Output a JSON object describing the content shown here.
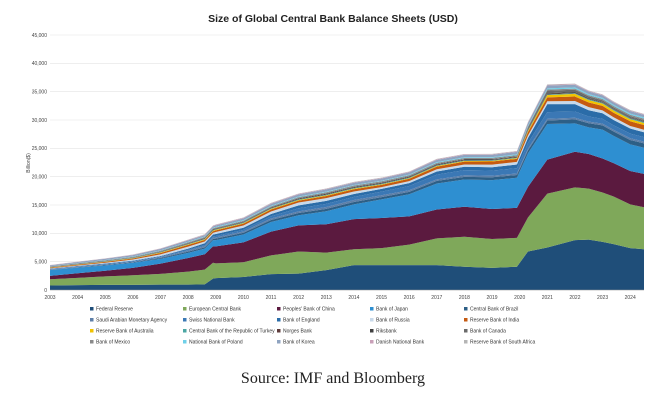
{
  "chart_data": {
    "type": "area",
    "stacked": true,
    "title": "Size of Global Central Bank Balance Sheets (USD)",
    "ylabel": "Billion($)",
    "ylim": [
      0,
      45000
    ],
    "yticks": [
      "0",
      "5,000",
      "10,000",
      "15,000",
      "20,000",
      "25,000",
      "30,000",
      "35,000",
      "40,000",
      "45,000"
    ],
    "xlim": [
      2003,
      2024.5
    ],
    "x_tick_labels": [
      "2003",
      "2004",
      "2005",
      "2006",
      "2007",
      "2008",
      "2009",
      "2010",
      "2011",
      "2012",
      "2013",
      "2014",
      "2015",
      "2016",
      "2017",
      "2018",
      "2019",
      "2020",
      "2021",
      "2022",
      "2023",
      "2024"
    ],
    "grid": true,
    "legend_position": "bottom",
    "x": [
      2003,
      2004,
      2005,
      2006,
      2007,
      2008,
      2008.6,
      2008.9,
      2009,
      2010,
      2011,
      2012,
      2013,
      2014,
      2015,
      2016,
      2017,
      2018,
      2019,
      2019.9,
      2020.3,
      2021,
      2022,
      2022.5,
      2023,
      2023.4,
      2024,
      2024.5
    ],
    "series": [
      {
        "name": "Federal Reserve",
        "color": "#1f4e79",
        "values": [
          800,
          850,
          900,
          900,
          950,
          950,
          1000,
          2000,
          2100,
          2300,
          2800,
          2900,
          3500,
          4400,
          4400,
          4400,
          4400,
          4100,
          3900,
          4100,
          6800,
          7500,
          8800,
          8900,
          8500,
          8100,
          7400,
          7200
        ]
      },
      {
        "name": "European Central Bank",
        "color": "#7fa85a",
        "values": [
          1100,
          1300,
          1500,
          1700,
          1900,
          2300,
          2600,
          2800,
          2600,
          2600,
          3300,
          3900,
          3100,
          2800,
          3000,
          3600,
          4700,
          5300,
          5100,
          5100,
          6000,
          9500,
          9300,
          9000,
          8700,
          8400,
          7700,
          7400
        ]
      },
      {
        "name": "Peoples' Bank of China",
        "color": "#5b1a3f",
        "values": [
          600,
          800,
          1000,
          1300,
          1800,
          2400,
          2700,
          2900,
          3000,
          3500,
          4200,
          4600,
          5000,
          5300,
          5300,
          5000,
          5100,
          5300,
          5300,
          5300,
          5400,
          6000,
          6300,
          6100,
          6000,
          5900,
          5900,
          5900
        ]
      },
      {
        "name": "Bank of Japan",
        "color": "#2e8fd1",
        "values": [
          1000,
          1000,
          950,
          900,
          850,
          900,
          1000,
          1100,
          1100,
          1400,
          1700,
          1800,
          2300,
          2600,
          3300,
          3900,
          4600,
          4800,
          5100,
          5300,
          5900,
          6300,
          5000,
          4700,
          5100,
          4800,
          4700,
          4600
        ]
      },
      {
        "name": "Central Bank of Brazil",
        "color": "#2d5f86",
        "values": [
          60,
          70,
          80,
          100,
          150,
          220,
          230,
          230,
          260,
          300,
          350,
          380,
          420,
          430,
          400,
          410,
          450,
          470,
          500,
          500,
          550,
          620,
          700,
          720,
          750,
          760,
          780,
          780
        ]
      },
      {
        "name": "Saudi Arabian Monetary Agency",
        "color": "#5e7fa8",
        "values": [
          50,
          60,
          80,
          110,
          150,
          200,
          220,
          220,
          220,
          230,
          260,
          300,
          330,
          350,
          320,
          300,
          280,
          280,
          270,
          270,
          270,
          280,
          300,
          300,
          300,
          300,
          300,
          300
        ]
      },
      {
        "name": "Swiss National Bank",
        "color": "#3b78b5",
        "values": [
          80,
          90,
          100,
          100,
          110,
          140,
          200,
          220,
          250,
          280,
          400,
          550,
          550,
          560,
          650,
          750,
          840,
          900,
          900,
          930,
          1000,
          1200,
          1100,
          900,
          850,
          800,
          820,
          800
        ]
      },
      {
        "name": "Bank of England",
        "color": "#2b6ca8",
        "values": [
          60,
          60,
          60,
          70,
          80,
          200,
          300,
          320,
          350,
          370,
          400,
          500,
          520,
          500,
          480,
          500,
          550,
          600,
          600,
          650,
          900,
          1400,
          1300,
          1100,
          1000,
          950,
          900,
          850
        ]
      },
      {
        "name": "Bank of Russia",
        "color": "#c8d9ea",
        "values": [
          70,
          100,
          150,
          200,
          300,
          350,
          300,
          300,
          350,
          400,
          450,
          500,
          500,
          450,
          300,
          350,
          400,
          400,
          450,
          450,
          450,
          500,
          550,
          550,
          500,
          480,
          450,
          450
        ]
      },
      {
        "name": "Reserve Bank of India",
        "color": "#c55a11",
        "values": [
          100,
          120,
          140,
          170,
          250,
          300,
          280,
          280,
          300,
          330,
          350,
          350,
          370,
          380,
          400,
          420,
          460,
          500,
          550,
          550,
          600,
          700,
          800,
          820,
          800,
          800,
          820,
          830
        ]
      },
      {
        "name": "Reserve Bank of Australia",
        "color": "#f2c300",
        "values": [
          50,
          50,
          50,
          60,
          70,
          90,
          100,
          100,
          100,
          100,
          100,
          110,
          110,
          110,
          100,
          100,
          110,
          110,
          110,
          120,
          200,
          400,
          450,
          420,
          400,
          380,
          370,
          360
        ]
      },
      {
        "name": "Central Bank of the Republic of Turkey",
        "color": "#4aa6a3",
        "values": [
          40,
          50,
          60,
          70,
          80,
          90,
          90,
          90,
          90,
          100,
          100,
          110,
          120,
          120,
          110,
          100,
          100,
          90,
          90,
          90,
          100,
          110,
          120,
          120,
          120,
          130,
          150,
          160
        ]
      },
      {
        "name": "Norges Bank",
        "color": "#5f3d3d",
        "values": [
          20,
          20,
          25,
          30,
          40,
          60,
          70,
          80,
          60,
          60,
          70,
          80,
          80,
          70,
          60,
          60,
          60,
          60,
          50,
          50,
          60,
          70,
          70,
          60,
          60,
          60,
          60,
          60
        ]
      },
      {
        "name": "Riksbank",
        "color": "#3f3f3f",
        "values": [
          30,
          30,
          30,
          30,
          40,
          60,
          90,
          90,
          80,
          70,
          80,
          90,
          100,
          100,
          100,
          110,
          120,
          120,
          110,
          110,
          120,
          150,
          140,
          120,
          100,
          90,
          80,
          80
        ]
      },
      {
        "name": "Bank of Canada",
        "color": "#6a6a6a",
        "values": [
          40,
          40,
          40,
          40,
          45,
          50,
          50,
          50,
          60,
          60,
          60,
          70,
          80,
          80,
          80,
          80,
          90,
          90,
          90,
          100,
          300,
          450,
          400,
          350,
          300,
          280,
          250,
          240
        ]
      },
      {
        "name": "Bank of Mexico",
        "color": "#8a8a8a",
        "values": [
          60,
          70,
          80,
          90,
          100,
          110,
          120,
          120,
          120,
          130,
          140,
          150,
          170,
          180,
          180,
          170,
          170,
          180,
          190,
          190,
          190,
          200,
          210,
          210,
          220,
          230,
          240,
          240
        ]
      },
      {
        "name": "National Bank of Poland",
        "color": "#6fd0e8",
        "values": [
          40,
          50,
          60,
          70,
          80,
          90,
          90,
          90,
          100,
          110,
          110,
          120,
          120,
          110,
          110,
          120,
          130,
          130,
          130,
          140,
          170,
          200,
          210,
          200,
          200,
          200,
          210,
          210
        ]
      },
      {
        "name": "Bank of Korea",
        "color": "#8fa3c0",
        "values": [
          150,
          180,
          200,
          220,
          260,
          250,
          240,
          240,
          270,
          300,
          330,
          360,
          380,
          380,
          380,
          390,
          410,
          420,
          420,
          430,
          460,
          500,
          480,
          460,
          450,
          450,
          450,
          450
        ]
      },
      {
        "name": "Danish National Bank",
        "color": "#c9a0b8",
        "values": [
          40,
          40,
          50,
          60,
          60,
          80,
          100,
          100,
          100,
          100,
          110,
          110,
          100,
          100,
          100,
          100,
          110,
          100,
          100,
          100,
          110,
          120,
          110,
          100,
          100,
          100,
          100,
          100
        ]
      },
      {
        "name": "Reserve Bank of South Africa",
        "color": "#b5b5b5",
        "values": [
          20,
          25,
          30,
          35,
          40,
          50,
          50,
          50,
          55,
          60,
          60,
          60,
          60,
          60,
          55,
          55,
          60,
          60,
          60,
          60,
          70,
          80,
          80,
          75,
          75,
          75,
          75,
          75
        ]
      }
    ],
    "source_label": "Source: IMF and Bloomberg"
  }
}
